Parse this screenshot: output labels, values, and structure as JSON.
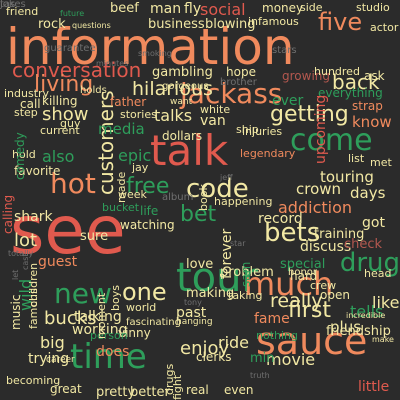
{
  "palette": {
    "background": "#2b2b2b",
    "orange": "#f08a5d",
    "red": "#e05a4e",
    "green": "#2e9e5b",
    "lightgreen": "#8fd19e",
    "yellow": "#f2e8a4",
    "brown": "#b4584f",
    "gray": "#6f6f6f",
    "darkgreen": "#2c7a4b"
  },
  "words": [
    {
      "text": "information",
      "color": "#f08a5d"
    },
    {
      "text": "see",
      "color": "#e05a4e"
    },
    {
      "text": "talk",
      "color": "#e05a4e"
    },
    {
      "text": "tour",
      "color": "#2e9e5b"
    },
    {
      "text": "sauce",
      "color": "#f08a5d"
    },
    {
      "text": "much",
      "color": "#f08a5d"
    },
    {
      "text": "jackass",
      "color": "#f08a5d"
    },
    {
      "text": "come",
      "color": "#2e9e5b"
    },
    {
      "text": "time",
      "color": "#2e9e5b"
    },
    {
      "text": "hot",
      "color": "#f08a5d"
    },
    {
      "text": "new",
      "color": "#2e9e5b"
    },
    {
      "text": "code",
      "color": "#f2e8a4"
    },
    {
      "text": "bets",
      "color": "#f2e8a4"
    },
    {
      "text": "drug",
      "color": "#2e9e5b"
    },
    {
      "text": "one",
      "color": "#f2e8a4"
    },
    {
      "text": "five",
      "color": "#f08a5d"
    },
    {
      "text": "conversation",
      "color": "#e05a4e"
    },
    {
      "text": "getting",
      "color": "#f2e8a4"
    },
    {
      "text": "free",
      "color": "#2e9e5b"
    },
    {
      "text": "bet",
      "color": "#2e9e5b"
    },
    {
      "text": "first",
      "color": "#f2e8a4"
    },
    {
      "text": "living",
      "color": "#f08a5d"
    },
    {
      "text": "back",
      "color": "#f2e8a4"
    },
    {
      "text": "customers",
      "color": "#f2e8a4"
    },
    {
      "text": "hilarious",
      "color": "#f2e8a4"
    },
    {
      "text": "show",
      "color": "#f2e8a4"
    },
    {
      "text": "really",
      "color": "#f2e8a4"
    },
    {
      "text": "enjoy",
      "color": "#f2e8a4"
    },
    {
      "text": "bucks",
      "color": "#f2e8a4"
    },
    {
      "text": "lot",
      "color": "#f2e8a4"
    },
    {
      "text": "also",
      "color": "#2e9e5b"
    },
    {
      "text": "talks",
      "color": "#f2e8a4"
    },
    {
      "text": "epic",
      "color": "#2e9e5b"
    },
    {
      "text": "movie",
      "color": "#f2e8a4"
    },
    {
      "text": "ride",
      "color": "#f2e8a4"
    },
    {
      "text": "tells",
      "color": "#2e9e5b"
    },
    {
      "text": "like",
      "color": "#f2e8a4"
    },
    {
      "text": "addiction",
      "color": "#f08a5d"
    },
    {
      "text": "crown",
      "color": "#f2e8a4"
    },
    {
      "text": "touring",
      "color": "#f2e8a4"
    },
    {
      "text": "discuss",
      "color": "#f2e8a4"
    },
    {
      "text": "days",
      "color": "#f2e8a4"
    },
    {
      "text": "check",
      "color": "#b4584f"
    },
    {
      "text": "know",
      "color": "#f08a5d"
    },
    {
      "text": "ever",
      "color": "#2e9e5b"
    },
    {
      "text": "past",
      "color": "#f2e8a4"
    },
    {
      "text": "trying",
      "color": "#f2e8a4"
    },
    {
      "text": "talking",
      "color": "#f2e8a4"
    },
    {
      "text": "working",
      "color": "#f2e8a4"
    },
    {
      "text": "does",
      "color": "#f08a5d"
    },
    {
      "text": "big",
      "color": "#f2e8a4"
    },
    {
      "text": "media",
      "color": "#2e9e5b"
    },
    {
      "text": "van",
      "color": "#f2e8a4"
    },
    {
      "text": "sure",
      "color": "#f2e8a4"
    },
    {
      "text": "guest",
      "color": "#f08a5d"
    },
    {
      "text": "wild",
      "color": "#2e9e5b"
    },
    {
      "text": "shark",
      "color": "#f2e8a4"
    },
    {
      "text": "fame",
      "color": "#f08a5d"
    },
    {
      "text": "record",
      "color": "#f2e8a4"
    },
    {
      "text": "training",
      "color": "#f2e8a4"
    },
    {
      "text": "friendship",
      "color": "#f2e8a4"
    },
    {
      "text": "plus",
      "color": "#f2e8a4"
    },
    {
      "text": "open",
      "color": "#f2e8a4"
    },
    {
      "text": "pretty",
      "color": "#f2e8a4"
    },
    {
      "text": "better",
      "color": "#f2e8a4"
    },
    {
      "text": "love",
      "color": "#f2e8a4"
    },
    {
      "text": "special",
      "color": "#2e9e5b"
    },
    {
      "text": "making",
      "color": "#f2e8a4"
    },
    {
      "text": "problem",
      "color": "#f2e8a4"
    },
    {
      "text": "min",
      "color": "#2e9e5b"
    },
    {
      "text": "got",
      "color": "#f2e8a4"
    },
    {
      "text": "little",
      "color": "#e05a4e"
    },
    {
      "text": "social",
      "color": "#e05a4e"
    },
    {
      "text": "money",
      "color": "#f2e8a4"
    },
    {
      "text": "man",
      "color": "#f2e8a4"
    },
    {
      "text": "beef",
      "color": "#f2e8a4"
    },
    {
      "text": "fly",
      "color": "#f2e8a4"
    },
    {
      "text": "rock",
      "color": "#f2e8a4"
    },
    {
      "text": "business",
      "color": "#f2e8a4"
    },
    {
      "text": "blowing",
      "color": "#f2e8a4"
    },
    {
      "text": "gambling",
      "color": "#f2e8a4"
    },
    {
      "text": "hope",
      "color": "#f2e8a4"
    },
    {
      "text": "growing",
      "color": "#b4584f"
    },
    {
      "text": "hundred",
      "color": "#f2e8a4"
    },
    {
      "text": "ask",
      "color": "#f2e8a4"
    },
    {
      "text": "everything",
      "color": "#2e9e5b"
    },
    {
      "text": "holds",
      "color": "#f2e8a4"
    },
    {
      "text": "killing",
      "color": "#f2e8a4"
    },
    {
      "text": "call",
      "color": "#f2e8a4"
    },
    {
      "text": "father",
      "color": "#f08a5d"
    },
    {
      "text": "stories",
      "color": "#f2e8a4"
    },
    {
      "text": "white",
      "color": "#f2e8a4"
    },
    {
      "text": "dollars",
      "color": "#f2e8a4"
    },
    {
      "text": "injuries",
      "color": "#f2e8a4"
    },
    {
      "text": "upcoming",
      "color": "#e05a4e"
    },
    {
      "text": "strap",
      "color": "#f08a5d"
    },
    {
      "text": "list",
      "color": "#f2e8a4"
    },
    {
      "text": "met",
      "color": "#f2e8a4"
    },
    {
      "text": "favorite",
      "color": "#f2e8a4"
    },
    {
      "text": "hold",
      "color": "#f2e8a4"
    },
    {
      "text": "step",
      "color": "#f2e8a4"
    },
    {
      "text": "current",
      "color": "#f2e8a4"
    },
    {
      "text": "comedy",
      "color": "#2e9e5b"
    },
    {
      "text": "calling",
      "color": "#e05a4e"
    },
    {
      "text": "bucket",
      "color": "#2e9e5b"
    },
    {
      "text": "week",
      "color": "#f2e8a4"
    },
    {
      "text": "life",
      "color": "#2e9e5b"
    },
    {
      "text": "watching",
      "color": "#f2e8a4"
    },
    {
      "text": "album",
      "color": "#6f6f6f"
    },
    {
      "text": "book",
      "color": "#f2e8a4"
    },
    {
      "text": "happening",
      "color": "#f2e8a4"
    },
    {
      "text": "forever",
      "color": "#f2e8a4"
    },
    {
      "text": "sam",
      "color": "#2e9e5b"
    },
    {
      "text": "hard",
      "color": "#f2e8a4"
    },
    {
      "text": "crew",
      "color": "#f2e8a4"
    },
    {
      "text": "taking",
      "color": "#f2e8a4"
    },
    {
      "text": "nothing",
      "color": "#2e9e5b"
    },
    {
      "text": "music",
      "color": "#f2e8a4"
    },
    {
      "text": "famous",
      "color": "#f2e8a4"
    },
    {
      "text": "vinny",
      "color": "#f2e8a4"
    },
    {
      "text": "clerks",
      "color": "#f2e8a4"
    },
    {
      "text": "real",
      "color": "#f2e8a4"
    },
    {
      "text": "even",
      "color": "#f2e8a4"
    },
    {
      "text": "person",
      "color": "#2e9e5b"
    },
    {
      "text": "world",
      "color": "#f2e8a4"
    },
    {
      "text": "great",
      "color": "#f2e8a4"
    },
    {
      "text": "becoming",
      "color": "#f2e8a4"
    },
    {
      "text": "friend",
      "color": "#f2e8a4"
    },
    {
      "text": "studio",
      "color": "#f2e8a4"
    },
    {
      "text": "actor",
      "color": "#f2e8a4"
    },
    {
      "text": "side",
      "color": "#f2e8a4"
    },
    {
      "text": "infamous",
      "color": "#f2e8a4"
    },
    {
      "text": "stars",
      "color": "#6f6f6f"
    },
    {
      "text": "brother",
      "color": "#6f6f6f"
    },
    {
      "text": "guy",
      "color": "#f2e8a4"
    },
    {
      "text": "industry",
      "color": "#f2e8a4"
    },
    {
      "text": "want",
      "color": "#f2e8a4"
    },
    {
      "text": "legendary",
      "color": "#f08a5d"
    },
    {
      "text": "ship",
      "color": "#f2e8a4"
    },
    {
      "text": "jay",
      "color": "#f2e8a4"
    },
    {
      "text": "made",
      "color": "#f2e8a4"
    },
    {
      "text": "head",
      "color": "#f2e8a4"
    },
    {
      "text": "honor",
      "color": "#f2e8a4"
    },
    {
      "text": "boys",
      "color": "#f2e8a4"
    },
    {
      "text": "moment",
      "color": "#f2e8a4"
    },
    {
      "text": "fascinating",
      "color": "#f2e8a4"
    },
    {
      "text": "hanging",
      "color": "#f2e8a4"
    },
    {
      "text": "drugs",
      "color": "#f2e8a4"
    },
    {
      "text": "fight",
      "color": "#f2e8a4"
    },
    {
      "text": "career",
      "color": "#f2e8a4"
    },
    {
      "text": "children",
      "color": "#f2e8a4"
    },
    {
      "text": "gorgeous",
      "color": "#f2e8a4"
    },
    {
      "text": "future",
      "color": "#2e9e5b"
    },
    {
      "text": "questions",
      "color": "#f2e8a4"
    },
    {
      "text": "smoking",
      "color": "#6f6f6f"
    },
    {
      "text": "minutes",
      "color": "#6f6f6f"
    },
    {
      "text": "let",
      "color": "#6f6f6f"
    },
    {
      "text": "cast",
      "color": "#6f6f6f"
    },
    {
      "text": "totally",
      "color": "#6f6f6f"
    },
    {
      "text": "guarantee",
      "color": "#6f6f6f"
    },
    {
      "text": "incredible",
      "color": "#f2e8a4"
    },
    {
      "text": "make",
      "color": "#f2e8a4"
    },
    {
      "text": "jeff",
      "color": "#6f6f6f"
    },
    {
      "text": "tony",
      "color": "#6f6f6f"
    },
    {
      "text": "star",
      "color": "#6f6f6f"
    },
    {
      "text": "truth",
      "color": "#6f6f6f"
    },
    {
      "text": "tas",
      "color": "#6f6f6f"
    },
    {
      "text": "jokes",
      "color": "#6f6f6f"
    }
  ]
}
